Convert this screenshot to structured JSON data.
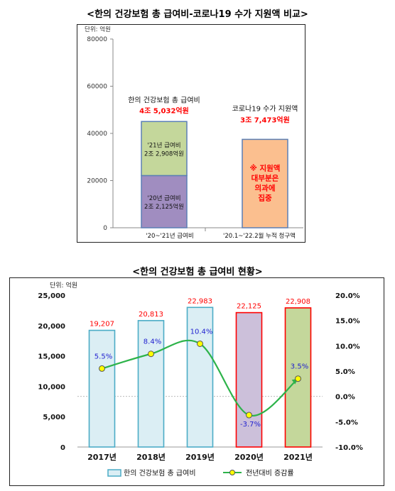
{
  "figure1": {
    "title": "<한의 건강보험 총 급여비-코로나19 수가 지원액 비교>",
    "unit": "단위: 억원",
    "chart_data": {
      "type": "bar",
      "y_ticks": [
        "80000",
        "60000",
        "40000",
        "20000",
        "0"
      ],
      "ylim": [
        0,
        80000
      ],
      "categories": [
        "'20~'21년 급여비",
        "'20.1~'22.2월 누적 청구액"
      ],
      "stacked_bar": {
        "segments": [
          {
            "name": "'20년 급여비",
            "value_label": "2조 2,125억원",
            "value": 22125,
            "color": "#a08dc0"
          },
          {
            "name": "'21년 급여비",
            "value_label": "2조 2,908억원",
            "value": 22908,
            "color": "#c4d79b"
          }
        ],
        "annotation_title": "한의 건강보험 총 급여비",
        "annotation_value": "4조 5,032억원",
        "total": 45032
      },
      "single_bar": {
        "value": 37473,
        "color": "#fbbf8f",
        "annotation_title": "코로나19 수가 지원액",
        "annotation_value": "3조 7,473억원",
        "inner_note": [
          "※ 지원액",
          "대부분은",
          "의과에",
          "집중"
        ]
      },
      "accent_color": "#ff0000",
      "bar_border_color": "#5b7fb5"
    }
  },
  "figure2": {
    "title": "<한의 건강보험 총 급여비 현황>",
    "unit": "단위: 억원",
    "chart_data": {
      "type": "bar",
      "categories": [
        "2017년",
        "2018년",
        "2019년",
        "2020년",
        "2021년"
      ],
      "bar_values": [
        19207,
        20813,
        22983,
        22125,
        22908
      ],
      "bar_value_labels": [
        "19,207",
        "20,813",
        "22,983",
        "22,125",
        "22,908"
      ],
      "growth_values": [
        5.5,
        8.4,
        10.4,
        -3.7,
        3.5
      ],
      "growth_labels": [
        "5.5%",
        "8.4%",
        "10.4%",
        "-3.7%",
        "3.5%"
      ],
      "y_left_ticks": [
        "25,000",
        "20,000",
        "15,000",
        "10,000",
        "5,000",
        "0"
      ],
      "ylim_left": [
        0,
        25000
      ],
      "y_right_ticks": [
        "20.0%",
        "15.0%",
        "10.0%",
        "5.0%",
        "0.0%",
        "-5.0%",
        "-10.0%"
      ],
      "ylim_right": [
        -10,
        20
      ],
      "bar_fill_colors": [
        "#dbeef4",
        "#dbeef4",
        "#dbeef4",
        "#ccc0da",
        "#c4d79b"
      ],
      "bar_border_colors": [
        "#4bacc6",
        "#4bacc6",
        "#4bacc6",
        "#ff0000",
        "#ff0000"
      ],
      "value_label_color": "#ff0000",
      "growth_label_color": "#1f1fcf",
      "line_color": "#2db34a",
      "marker_color": "#ffff00",
      "legend": {
        "bar_label": "한의 건강보험 총 급여비",
        "line_label": "전년대비 증감률",
        "position": "bottom"
      }
    }
  }
}
